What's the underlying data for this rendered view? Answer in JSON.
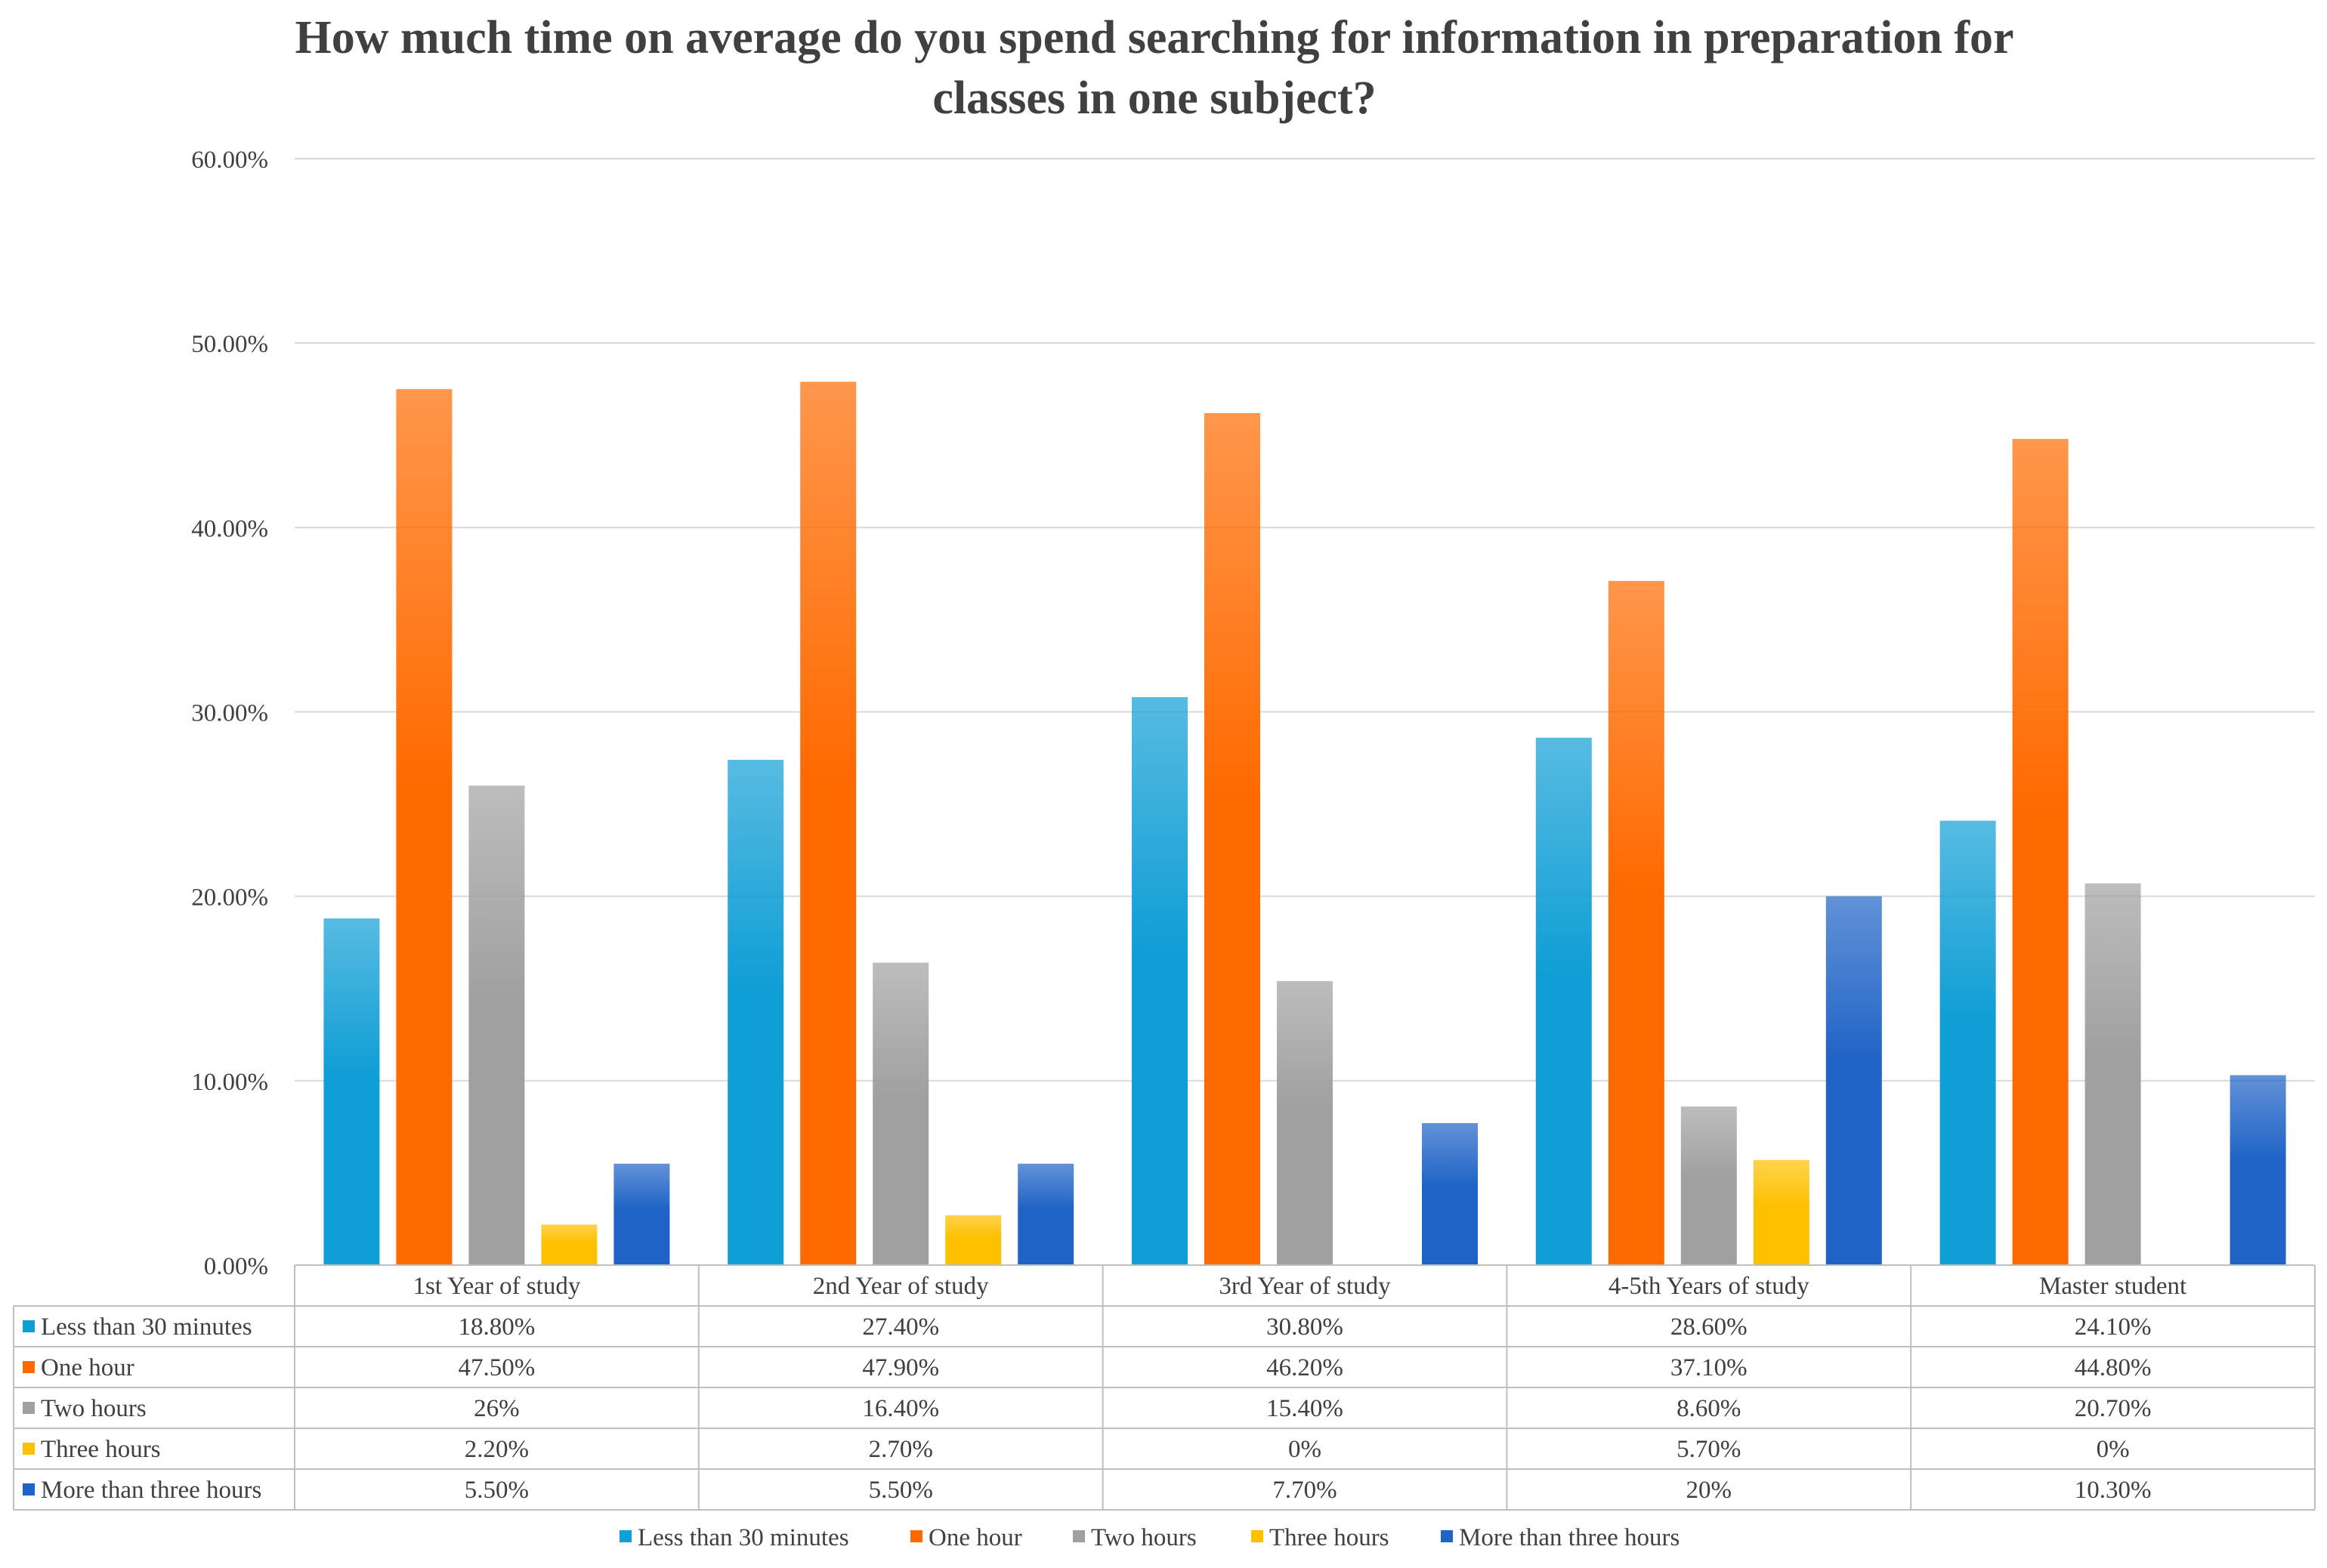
{
  "chart_data": {
    "type": "bar",
    "title_lines": [
      "How much time on average do you spend searching for information in preparation for",
      "classes in one subject?"
    ],
    "categories": [
      "1st Year of study",
      "2nd Year of study",
      "3rd Year of study",
      "4-5th Years of study",
      "Master student"
    ],
    "ylim": [
      0,
      0.6
    ],
    "yticks": [
      "0.00%",
      "10.00%",
      "20.00%",
      "30.00%",
      "40.00%",
      "50.00%",
      "60.00%"
    ],
    "grid": true,
    "legend_position": "bottom",
    "series": [
      {
        "name": "Less than 30 minutes",
        "color": "#0f9ed5",
        "values": [
          0.188,
          0.274,
          0.308,
          0.286,
          0.241
        ],
        "labels": [
          "18.80%",
          "27.40%",
          "30.80%",
          "28.60%",
          "24.10%"
        ]
      },
      {
        "name": "One hour",
        "color": "#ff6a00",
        "values": [
          0.475,
          0.479,
          0.462,
          0.371,
          0.448
        ],
        "labels": [
          "47.50%",
          "47.90%",
          "46.20%",
          "37.10%",
          "44.80%"
        ]
      },
      {
        "name": "Two hours",
        "color": "#a0a0a0",
        "values": [
          0.26,
          0.164,
          0.154,
          0.086,
          0.207
        ],
        "labels": [
          "26%",
          "16.40%",
          "15.40%",
          "8.60%",
          "20.70%"
        ]
      },
      {
        "name": "Three hours",
        "color": "#ffc000",
        "values": [
          0.022,
          0.027,
          0,
          0.057,
          0
        ],
        "labels": [
          "2.20%",
          "2.70%",
          "0%",
          "5.70%",
          "0%"
        ]
      },
      {
        "name": "More than three hours",
        "color": "#1f63c6",
        "values": [
          0.055,
          0.055,
          0.077,
          0.2,
          0.103
        ],
        "labels": [
          "5.50%",
          "5.50%",
          "7.70%",
          "20%",
          "10.30%"
        ]
      }
    ]
  }
}
